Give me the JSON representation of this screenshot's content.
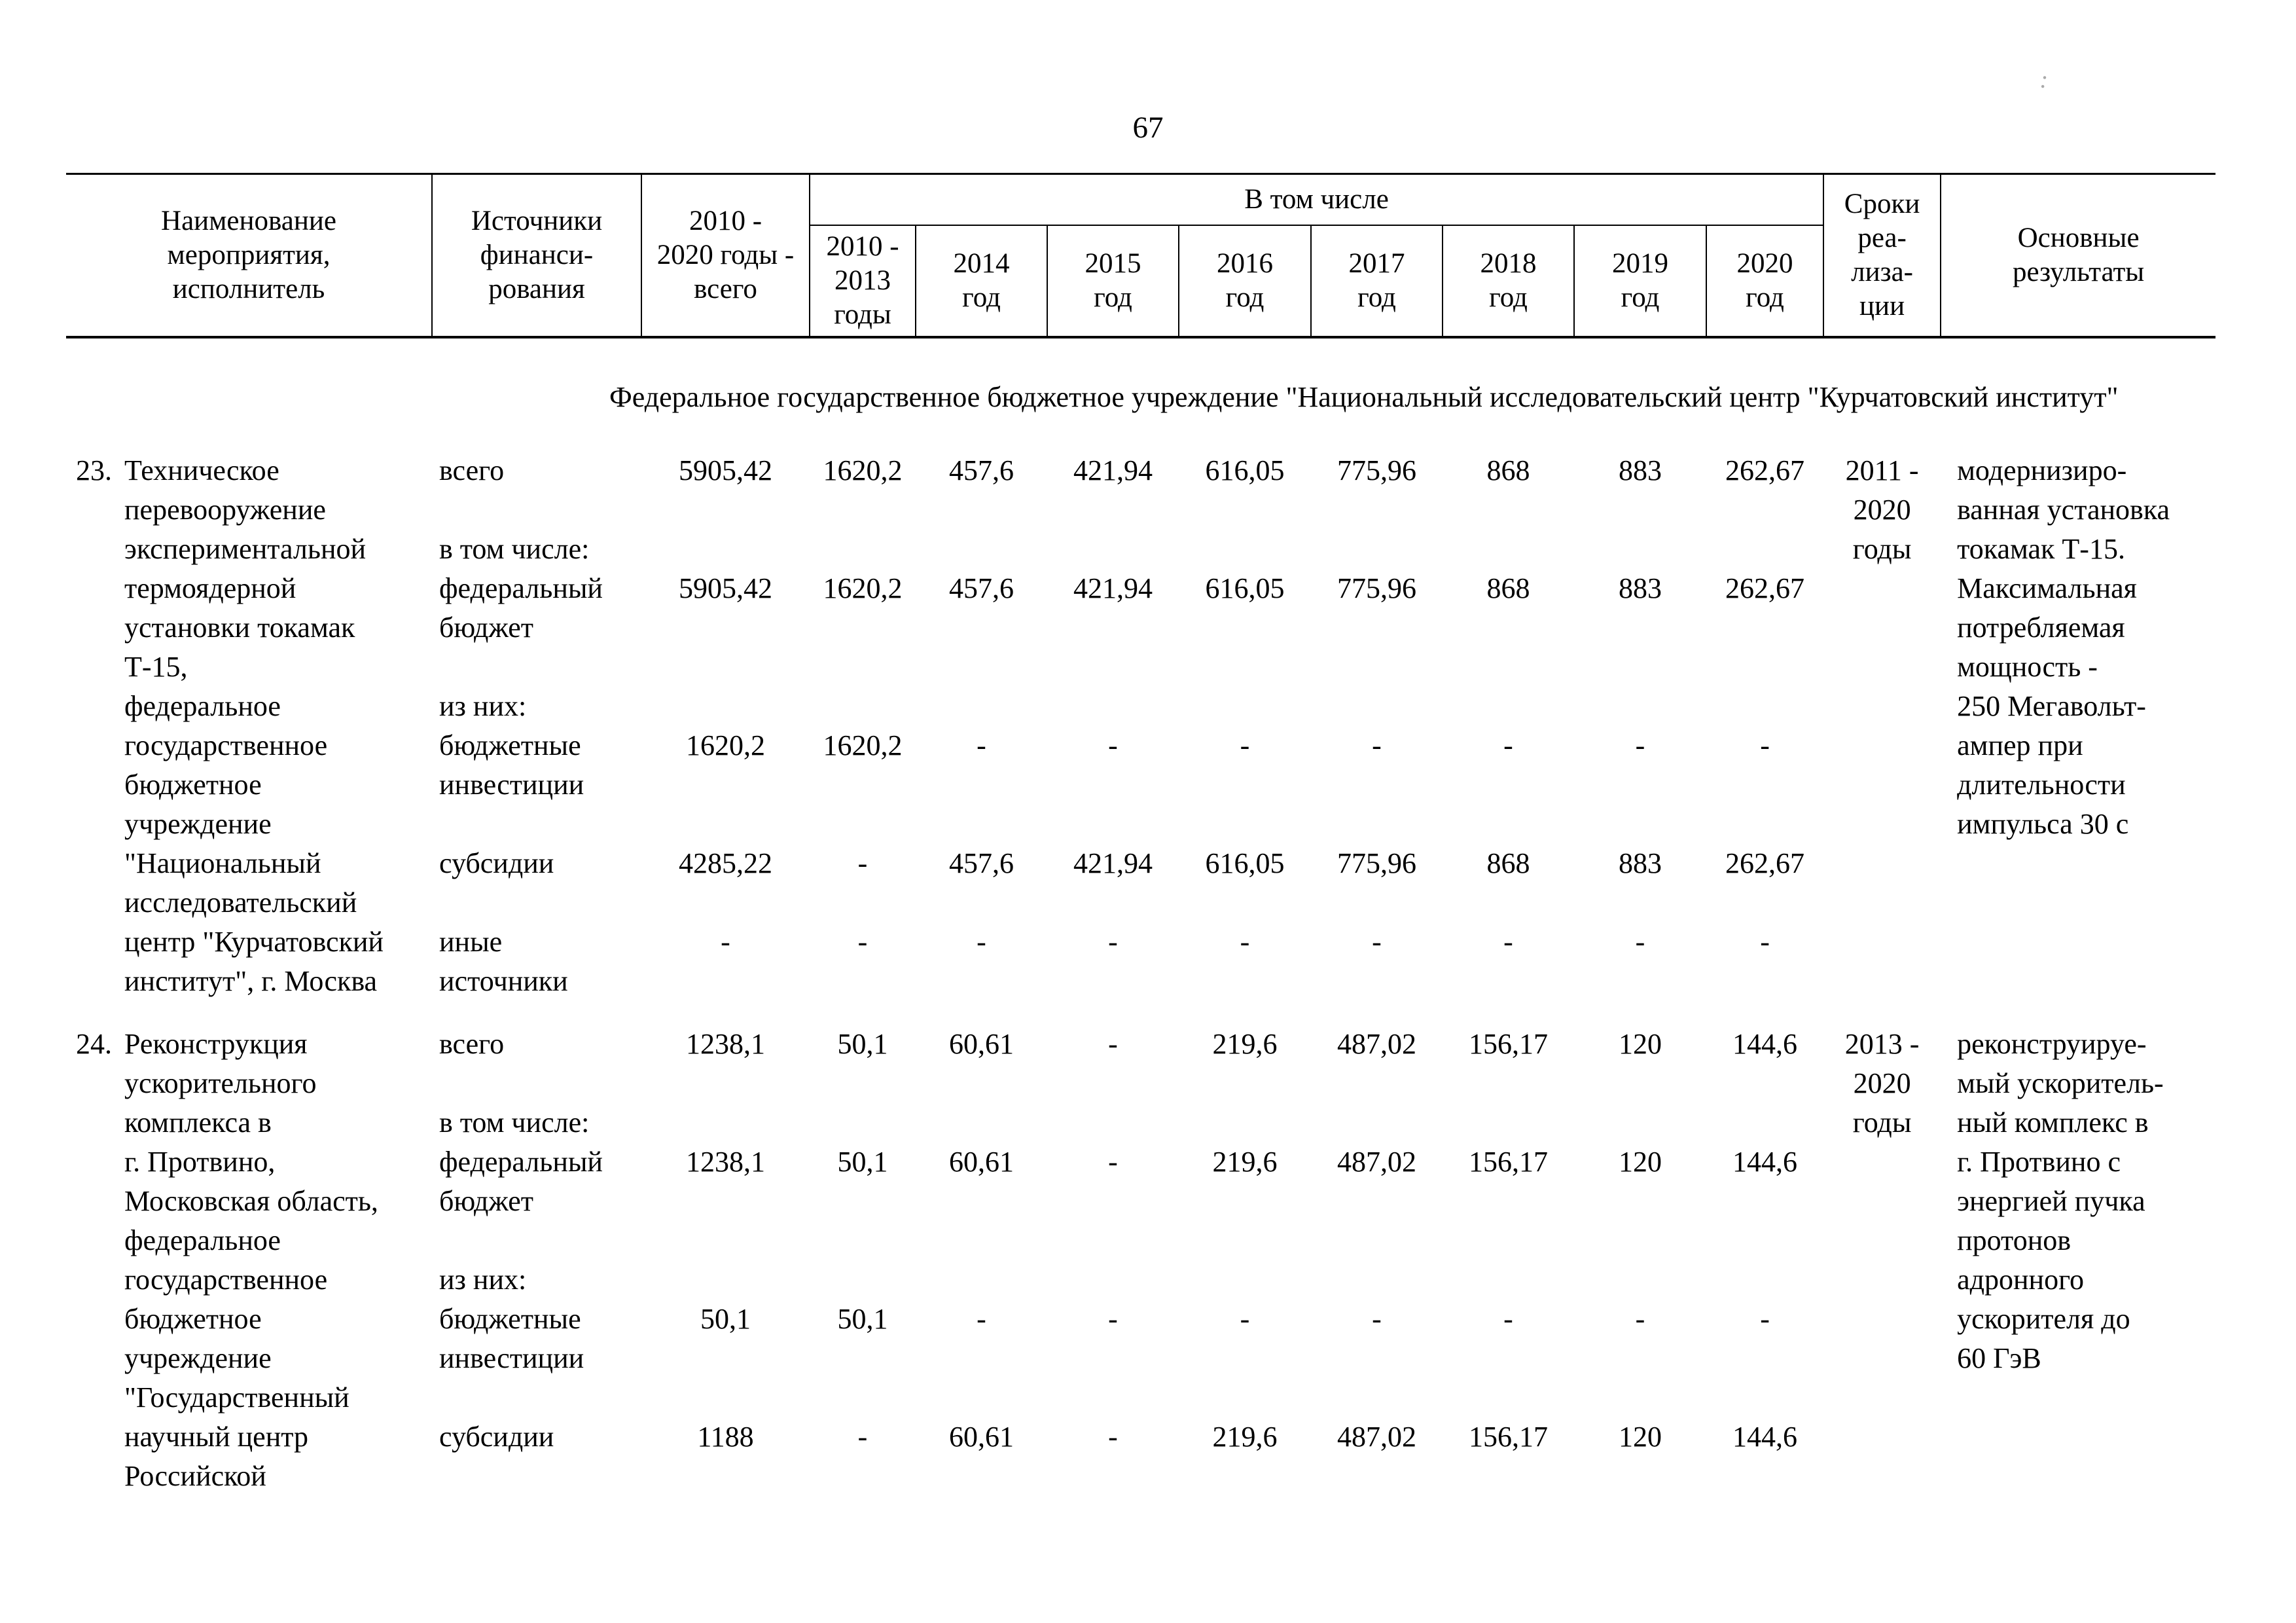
{
  "page": {
    "number": "67",
    "artifact": ":"
  },
  "header": {
    "name": "Наименование\nмероприятия,\nисполнитель",
    "sources": "Источники\nфинанси-\nрования",
    "total": "2010 -\n2020 годы -\nвсего",
    "including": "В том числе",
    "years": [
      "2010 -\n2013\nгоды",
      "2014\nгод",
      "2015\nгод",
      "2016\nгод",
      "2017\nгод",
      "2018\nгод",
      "2019\nгод",
      "2020\nгод"
    ],
    "timeline": "Сроки\nреа-\nлиза-\nции",
    "results": "Основные\nрезультаты"
  },
  "section_title": "Федеральное государственное бюджетное учреждение \"Национальный исследовательский центр \"Курчатовский институт\"",
  "entries": [
    {
      "number": "23.",
      "columns": {
        "name": [
          "Техническое",
          "перевооружение",
          "экспериментальной",
          "термоядерной",
          "установки токамак",
          "Т-15,",
          "федеральное",
          "государственное",
          "бюджетное",
          "учреждение",
          "\"Национальный",
          "исследовательский",
          "центр \"Курчатовский",
          "институт\", г. Москва"
        ],
        "source": [
          "всего",
          "",
          "в том числе:",
          "федеральный",
          "бюджет",
          "",
          "из них:",
          "бюджетные",
          "инвестиции",
          "",
          "субсидии",
          "",
          "иные",
          "источники"
        ],
        "total": [
          "5905,42",
          "",
          "",
          "5905,42",
          "",
          "",
          "",
          "1620,2",
          "",
          "",
          "4285,22",
          "",
          "-"
        ],
        "years": [
          [
            "1620,2",
            "",
            "",
            "1620,2",
            "",
            "",
            "",
            "1620,2",
            "",
            "",
            "-",
            "",
            "-"
          ],
          [
            "457,6",
            "",
            "",
            "457,6",
            "",
            "",
            "",
            "-",
            "",
            "",
            "457,6",
            "",
            "-"
          ],
          [
            "421,94",
            "",
            "",
            "421,94",
            "",
            "",
            "",
            "-",
            "",
            "",
            "421,94",
            "",
            "-"
          ],
          [
            "616,05",
            "",
            "",
            "616,05",
            "",
            "",
            "",
            "-",
            "",
            "",
            "616,05",
            "",
            "-"
          ],
          [
            "775,96",
            "",
            "",
            "775,96",
            "",
            "",
            "",
            "-",
            "",
            "",
            "775,96",
            "",
            "-"
          ],
          [
            "868",
            "",
            "",
            "868",
            "",
            "",
            "",
            "-",
            "",
            "",
            "868",
            "",
            "-"
          ],
          [
            "883",
            "",
            "",
            "883",
            "",
            "",
            "",
            "-",
            "",
            "",
            "883",
            "",
            "-"
          ],
          [
            "262,67",
            "",
            "",
            "262,67",
            "",
            "",
            "",
            "-",
            "",
            "",
            "262,67",
            "",
            "-"
          ]
        ],
        "timeline": [
          "2011 -",
          "2020",
          "годы"
        ],
        "results": [
          "модернизиро-",
          "ванная установка",
          "токамак Т-15.",
          "Максимальная",
          "потребляемая",
          "мощность -",
          "250 Мегавольт-",
          "ампер при",
          "длительности",
          "импульса 30 с"
        ]
      }
    },
    {
      "number": "24.",
      "columns": {
        "name": [
          "Реконструкция",
          "ускорительного",
          "комплекса в",
          "г. Протвино,",
          "Московская область,",
          "федеральное",
          "государственное",
          "бюджетное",
          "учреждение",
          "\"Государственный",
          "научный центр",
          "Российской"
        ],
        "source": [
          "всего",
          "",
          "в том числе:",
          "федеральный",
          "бюджет",
          "",
          "из них:",
          "бюджетные",
          "инвестиции",
          "",
          "субсидии"
        ],
        "total": [
          "1238,1",
          "",
          "",
          "1238,1",
          "",
          "",
          "",
          "50,1",
          "",
          "",
          "1188"
        ],
        "years": [
          [
            "50,1",
            "",
            "",
            "50,1",
            "",
            "",
            "",
            "50,1",
            "",
            "",
            "-"
          ],
          [
            "60,61",
            "",
            "",
            "60,61",
            "",
            "",
            "",
            "-",
            "",
            "",
            "60,61"
          ],
          [
            "-",
            "",
            "",
            "-",
            "",
            "",
            "",
            "-",
            "",
            "",
            "-"
          ],
          [
            "219,6",
            "",
            "",
            "219,6",
            "",
            "",
            "",
            "-",
            "",
            "",
            "219,6"
          ],
          [
            "487,02",
            "",
            "",
            "487,02",
            "",
            "",
            "",
            "-",
            "",
            "",
            "487,02"
          ],
          [
            "156,17",
            "",
            "",
            "156,17",
            "",
            "",
            "",
            "-",
            "",
            "",
            "156,17"
          ],
          [
            "120",
            "",
            "",
            "120",
            "",
            "",
            "",
            "-",
            "",
            "",
            "120"
          ],
          [
            "144,6",
            "",
            "",
            "144,6",
            "",
            "",
            "",
            "-",
            "",
            "",
            "144,6"
          ]
        ],
        "timeline": [
          "2013 -",
          "2020",
          "годы"
        ],
        "results": [
          "реконструируе-",
          "мый ускоритель-",
          "ный комплекс в",
          "г. Протвино с",
          "энергией пучка",
          "протонов",
          "адронного",
          "ускорителя до",
          "60 ГэВ"
        ]
      }
    }
  ]
}
